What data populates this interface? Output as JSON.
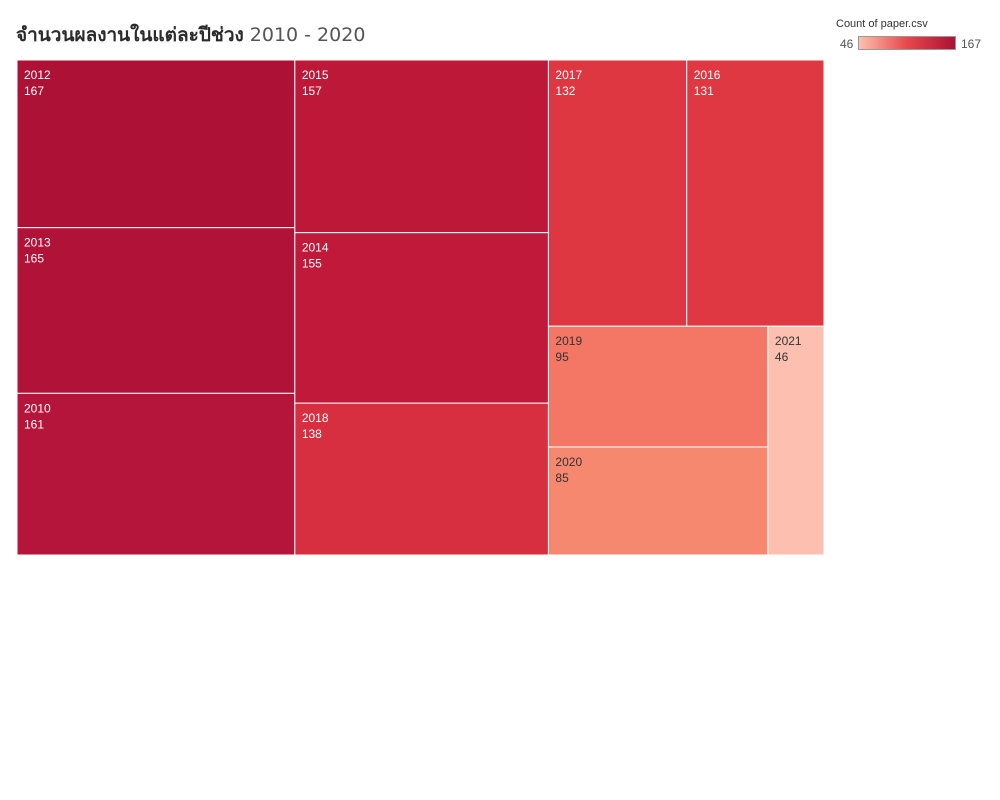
{
  "title": {
    "main": "จำนวนผลงานในแต่ละปีช่วง",
    "range": "2010 - 2020"
  },
  "legend": {
    "title": "Count of paper.csv",
    "min": "46",
    "max": "167",
    "color_low": "#fdc0b0",
    "color_mid": "#e8474c",
    "color_high": "#ad1135"
  },
  "chart_data": {
    "type": "treemap",
    "measure": "Count of paper.csv",
    "items": [
      {
        "label": "2012",
        "value": 167,
        "color": "#ad1135"
      },
      {
        "label": "2013",
        "value": 165,
        "color": "#b01337"
      },
      {
        "label": "2010",
        "value": 161,
        "color": "#b5153a"
      },
      {
        "label": "2015",
        "value": 157,
        "color": "#bd1838"
      },
      {
        "label": "2014",
        "value": 155,
        "color": "#c0193a"
      },
      {
        "label": "2018",
        "value": 138,
        "color": "#d72e40"
      },
      {
        "label": "2017",
        "value": 132,
        "color": "#de3742"
      },
      {
        "label": "2016",
        "value": 131,
        "color": "#df3842"
      },
      {
        "label": "2019",
        "value": 95,
        "color": "#f37764"
      },
      {
        "label": "2020",
        "value": 85,
        "color": "#f78870"
      },
      {
        "label": "2021",
        "value": 46,
        "color": "#fdc0b0"
      }
    ]
  }
}
